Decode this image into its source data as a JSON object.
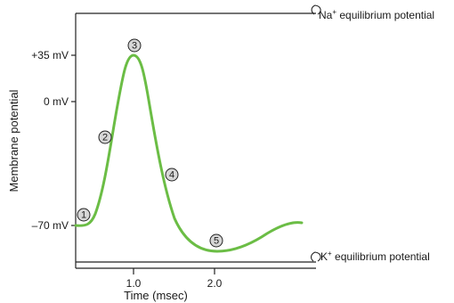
{
  "diagram": {
    "y_axis_title": "Membrane potential",
    "x_axis_title": "Time (msec)",
    "y_ticks": [
      {
        "label": "+35 mV"
      },
      {
        "label": "0 mV"
      },
      {
        "label": "–70 mV"
      }
    ],
    "x_ticks": [
      {
        "label": "1.0"
      },
      {
        "label": "2.0"
      }
    ],
    "na_equilibrium": {
      "ion": "Na",
      "charge": "+",
      "text": " equilibrium potential"
    },
    "k_equilibrium": {
      "ion": "K",
      "charge": "+",
      "text": " equilibrium potential"
    },
    "markers": [
      {
        "label": "1"
      },
      {
        "label": "2"
      },
      {
        "label": "3"
      },
      {
        "label": "4"
      },
      {
        "label": "5"
      }
    ],
    "curve_color": "#6bbd45",
    "line_color": "#222222"
  }
}
